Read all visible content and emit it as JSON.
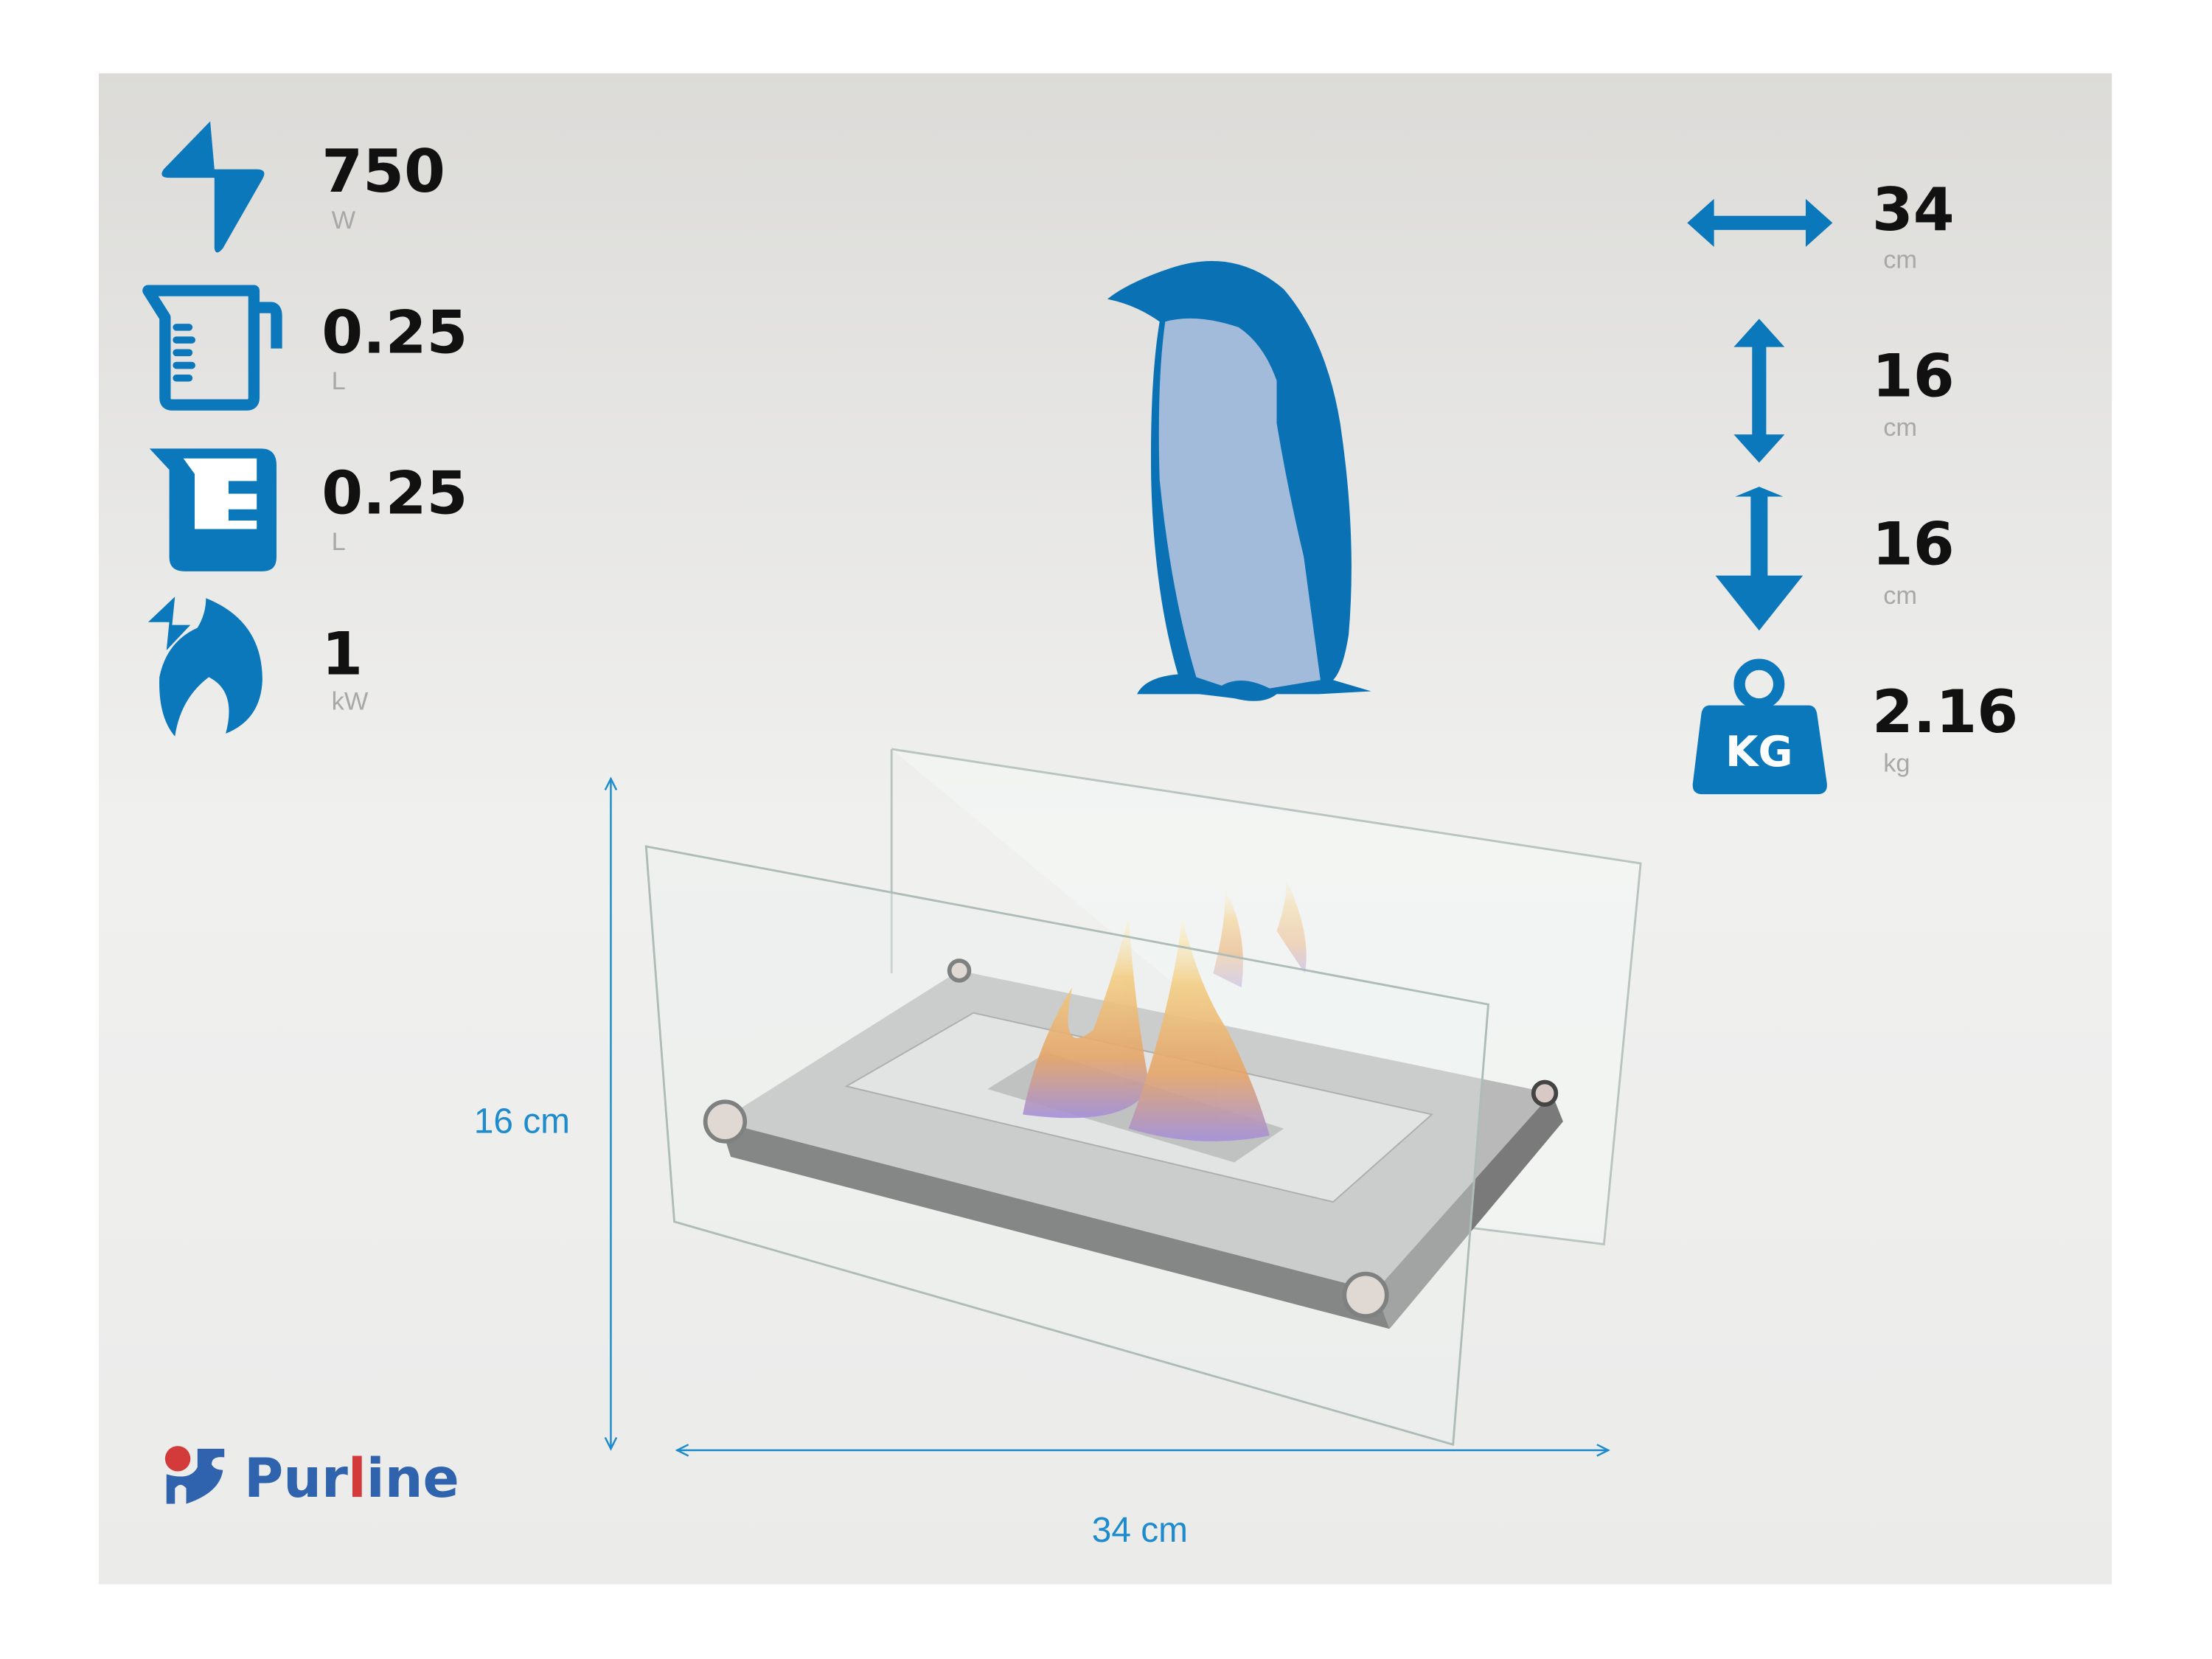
{
  "colors": {
    "icon_blue": "#0a78bb",
    "dimension_blue": "#1e8ccc",
    "penguin_belly": "#a2bbdb",
    "logo_blue": "#2f63ad",
    "logo_red": "#d33a3a"
  },
  "specs_left": [
    {
      "icon": "lightning-icon",
      "value": "750",
      "unit": "W"
    },
    {
      "icon": "measuring-jug-icon",
      "value": "0.25",
      "unit": "L"
    },
    {
      "icon": "fuel-tank-icon",
      "value": "0.25",
      "unit": "L"
    },
    {
      "icon": "flame-power-icon",
      "value": "1",
      "unit": "kW"
    }
  ],
  "specs_right": [
    {
      "icon": "width-arrow-icon",
      "value": "34",
      "unit": "cm"
    },
    {
      "icon": "height-arrow-icon",
      "value": "16",
      "unit": "cm"
    },
    {
      "icon": "depth-arrow-icon",
      "value": "16",
      "unit": "cm"
    },
    {
      "icon": "weight-kg-icon",
      "value": "2.16",
      "unit": "kg",
      "icon_text": "KG"
    }
  ],
  "dimensions": {
    "height_label": "16 cm",
    "width_label": "34 cm"
  },
  "logo": {
    "text_p": "Pur",
    "text_l": "l",
    "text_end": "ine"
  }
}
